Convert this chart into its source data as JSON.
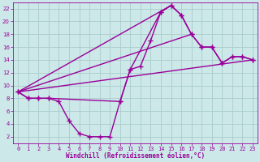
{
  "xlabel": "Windchill (Refroidissement éolien,°C)",
  "xlim": [
    -0.5,
    23.5
  ],
  "ylim": [
    1,
    23
  ],
  "xticks": [
    0,
    1,
    2,
    3,
    4,
    5,
    6,
    7,
    8,
    9,
    10,
    11,
    12,
    13,
    14,
    15,
    16,
    17,
    18,
    19,
    20,
    21,
    22,
    23
  ],
  "yticks": [
    2,
    4,
    6,
    8,
    10,
    12,
    14,
    16,
    18,
    20,
    22
  ],
  "background_color": "#cce8e8",
  "grid_color": "#aacccc",
  "line_color": "#990099",
  "curve1_x": [
    0,
    1,
    2,
    3,
    4,
    5,
    6,
    7,
    8,
    9,
    10,
    11,
    12,
    13,
    14,
    15,
    16,
    17,
    18,
    19,
    20,
    21,
    22,
    23
  ],
  "curve1_y": [
    9,
    8,
    8,
    8,
    7.5,
    4.5,
    2.5,
    2,
    2,
    2,
    7.5,
    12.5,
    13,
    17,
    21.5,
    22.5,
    21,
    18,
    16,
    16,
    13.5,
    14.5,
    14.5,
    14
  ],
  "curve2_x": [
    0,
    1,
    2,
    3,
    10,
    11,
    14,
    15,
    16,
    17,
    18,
    19,
    20,
    21,
    22,
    23
  ],
  "curve2_y": [
    9,
    8,
    8,
    8,
    7.5,
    12.5,
    21.5,
    22.5,
    21,
    18,
    16,
    16,
    13.5,
    14.5,
    14.5,
    14
  ],
  "line1_x": [
    0,
    23
  ],
  "line1_y": [
    9,
    14
  ],
  "line2_x": [
    0,
    15
  ],
  "line2_y": [
    9,
    22.5
  ],
  "line3_x": [
    0,
    17
  ],
  "line3_y": [
    9,
    18
  ],
  "marker": "+",
  "markersize": 4,
  "linewidth": 1.0
}
